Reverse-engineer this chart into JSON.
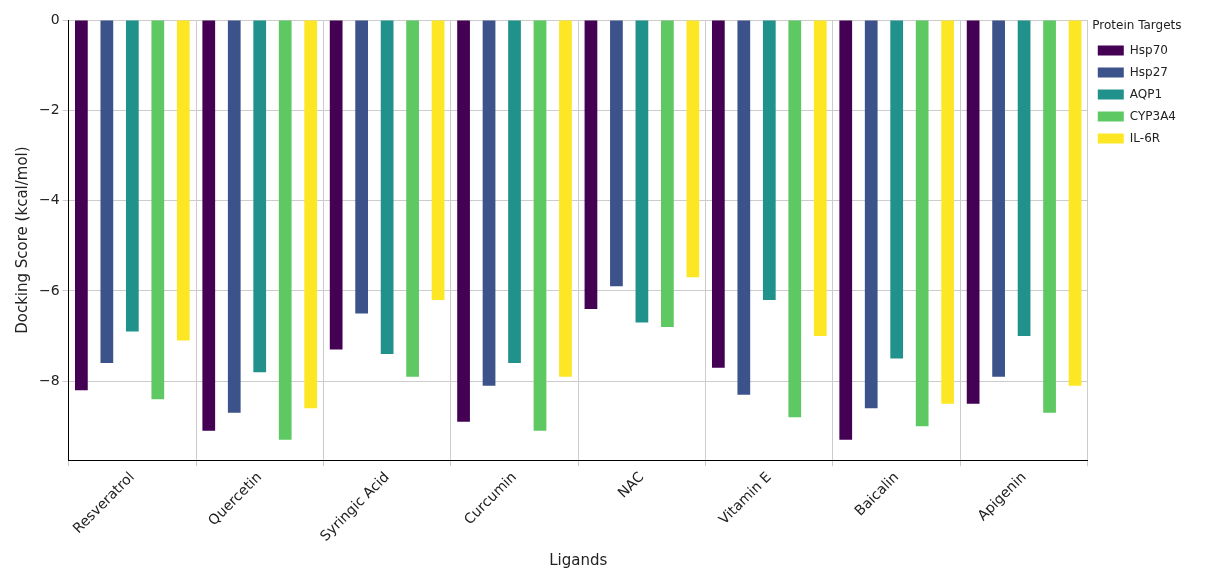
{
  "chart_data": {
    "type": "bar",
    "xlabel": "Ligands",
    "ylabel": "Docking Score (kcal/mol)",
    "legend_title": "Protein Targets",
    "categories": [
      "Resveratrol",
      "Quercetin",
      "Syringic Acid",
      "Curcumin",
      "NAC",
      "Vitamin E",
      "Baicalin",
      "Apigenin"
    ],
    "series": [
      {
        "name": "Hsp70",
        "color": "#440154",
        "values": [
          -8.2,
          -9.1,
          -7.3,
          -8.9,
          -6.4,
          -7.7,
          -9.3,
          -8.5
        ]
      },
      {
        "name": "Hsp27",
        "color": "#3b528b",
        "values": [
          -7.6,
          -8.7,
          -6.5,
          -8.1,
          -5.9,
          -8.3,
          -8.6,
          -7.9
        ]
      },
      {
        "name": "AQP1",
        "color": "#21918c",
        "values": [
          -6.9,
          -7.8,
          -7.4,
          -7.6,
          -6.7,
          -6.2,
          -7.5,
          -7.0
        ]
      },
      {
        "name": "CYP3A4",
        "color": "#5ec962",
        "values": [
          -8.4,
          -9.3,
          -7.9,
          -9.1,
          -6.8,
          -8.8,
          -9.0,
          -8.7
        ]
      },
      {
        "name": "IL-6R",
        "color": "#fde725",
        "values": [
          -7.1,
          -8.6,
          -6.2,
          -7.9,
          -5.7,
          -7.0,
          -8.5,
          -8.1
        ]
      }
    ],
    "ylim": [
      -9.75,
      0
    ],
    "yticks": [
      -8,
      -6,
      -4,
      -2,
      0
    ],
    "grid": true,
    "legend": "top right"
  }
}
